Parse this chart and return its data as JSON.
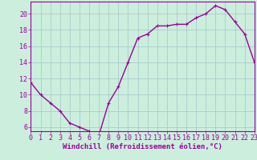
{
  "x": [
    0,
    1,
    2,
    3,
    4,
    5,
    6,
    7,
    8,
    9,
    10,
    11,
    12,
    13,
    14,
    15,
    16,
    17,
    18,
    19,
    20,
    21,
    22,
    23
  ],
  "y": [
    11.5,
    10.0,
    9.0,
    8.0,
    6.5,
    6.0,
    5.5,
    5.0,
    9.0,
    11.0,
    14.0,
    17.0,
    17.5,
    18.5,
    18.5,
    18.7,
    18.7,
    19.5,
    20.0,
    21.0,
    20.5,
    19.0,
    17.5,
    14.0
  ],
  "xlabel": "Windchill (Refroidissement éolien,°C)",
  "line_color": "#990099",
  "marker": "+",
  "bg_color": "#cceedd",
  "grid_color": "#aacccc",
  "xlim": [
    0,
    23
  ],
  "ylim": [
    5.5,
    21.5
  ],
  "yticks": [
    6,
    8,
    10,
    12,
    14,
    16,
    18,
    20
  ],
  "xticks": [
    0,
    1,
    2,
    3,
    4,
    5,
    6,
    7,
    8,
    9,
    10,
    11,
    12,
    13,
    14,
    15,
    16,
    17,
    18,
    19,
    20,
    21,
    22,
    23
  ],
  "xlabel_fontsize": 6.5,
  "tick_fontsize": 6,
  "line_width": 1.0,
  "marker_size": 3.5,
  "marker_ew": 0.8
}
